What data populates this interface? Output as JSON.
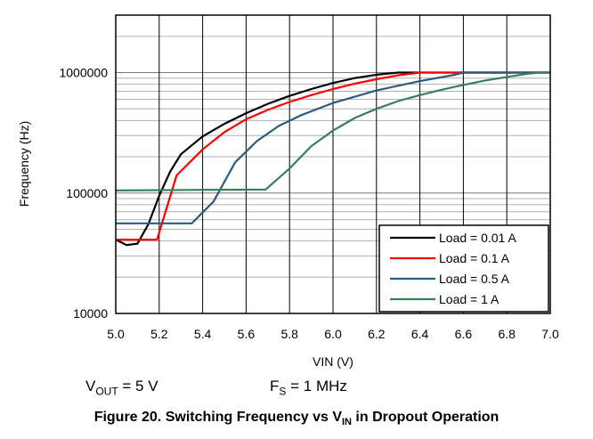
{
  "chart_data": {
    "type": "line",
    "xlabel": "VIN (V)",
    "ylabel": "Frequency (Hz)",
    "xlim": [
      5.0,
      7.0
    ],
    "ylim": [
      10000,
      3000000
    ],
    "yscale": "log",
    "grid": true,
    "legend_position": "bottom-right",
    "x_ticks": [
      "5.0",
      "5.2",
      "5.4",
      "5.6",
      "5.8",
      "6.0",
      "6.2",
      "6.4",
      "6.6",
      "6.8",
      "7.0"
    ],
    "y_ticks": [
      {
        "value": 10000,
        "label": "10000"
      },
      {
        "value": 100000,
        "label": "100000"
      },
      {
        "value": 1000000,
        "label": "1000000"
      }
    ],
    "series": [
      {
        "name": "Load = 0.01 A",
        "color": "#000000",
        "x": [
          5.0,
          5.05,
          5.1,
          5.15,
          5.2,
          5.25,
          5.3,
          5.4,
          5.5,
          5.6,
          5.7,
          5.8,
          5.9,
          6.0,
          6.1,
          6.2,
          6.3,
          6.35,
          6.4,
          6.6,
          6.8,
          7.0
        ],
        "values": [
          41000,
          37000,
          38000,
          55000,
          95000,
          150000,
          210000,
          295000,
          375000,
          460000,
          550000,
          640000,
          730000,
          820000,
          900000,
          960000,
          1000000,
          1000000,
          1000000,
          1000000,
          1000000,
          1000000
        ]
      },
      {
        "name": "Load = 0.1 A",
        "color": "#ff0000",
        "x": [
          5.0,
          5.19,
          5.28,
          5.4,
          5.5,
          5.6,
          5.7,
          5.8,
          5.9,
          6.0,
          6.1,
          6.2,
          6.3,
          6.4,
          6.6,
          6.8,
          7.0
        ],
        "values": [
          41000,
          41000,
          140000,
          230000,
          320000,
          410000,
          490000,
          570000,
          650000,
          730000,
          810000,
          880000,
          950000,
          1000000,
          1000000,
          1000000,
          1000000
        ]
      },
      {
        "name": "Load = 0.5 A",
        "color": "#2e5a7d",
        "x": [
          5.0,
          5.35,
          5.45,
          5.55,
          5.65,
          5.75,
          5.85,
          6.0,
          6.2,
          6.4,
          6.55,
          6.6,
          6.8,
          7.0
        ],
        "values": [
          56000,
          56000,
          85000,
          180000,
          270000,
          360000,
          440000,
          560000,
          710000,
          850000,
          950000,
          1000000,
          1000000,
          1000000
        ]
      },
      {
        "name": "Load = 1 A",
        "color": "#3a7d5a",
        "x": [
          5.0,
          5.69,
          5.8,
          5.9,
          6.0,
          6.1,
          6.2,
          6.3,
          6.4,
          6.5,
          6.6,
          6.7,
          6.8,
          6.9,
          6.95,
          7.0
        ],
        "values": [
          105000,
          107000,
          160000,
          245000,
          330000,
          420000,
          500000,
          580000,
          650000,
          720000,
          790000,
          860000,
          920000,
          980000,
          1000000,
          1000000
        ]
      }
    ]
  },
  "conditions": {
    "vout_prefix": "V",
    "vout_sub": "OUT",
    "vout_value": " = 5 V",
    "fs_prefix": "F",
    "fs_sub": "S",
    "fs_value": " = 1 MHz"
  },
  "caption": {
    "main": "Figure 20. Switching Frequency vs V",
    "sub": "IN",
    "tail": " in Dropout Operation"
  }
}
